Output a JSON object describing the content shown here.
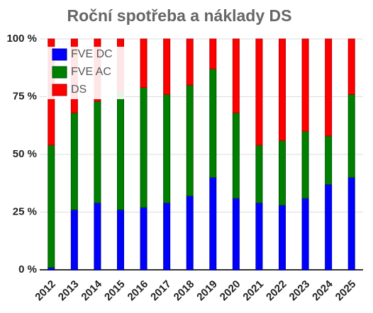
{
  "chart_data": {
    "type": "stacked_bar",
    "title": "Roční spotřeba a náklady DS",
    "categories": [
      "2012",
      "2013",
      "2014",
      "2015",
      "2016",
      "2017",
      "2018",
      "2019",
      "2020",
      "2021",
      "2022",
      "2023",
      "2024",
      "2025"
    ],
    "series": [
      {
        "name": "FVE DC",
        "color": "#0000ff",
        "values": [
          1,
          26,
          29,
          26,
          27,
          29,
          32,
          40,
          31,
          29,
          28,
          31,
          37,
          40
        ]
      },
      {
        "name": "FVE AC",
        "color": "#008000",
        "values": [
          53,
          42,
          44,
          51,
          52,
          47,
          48,
          47,
          37,
          25,
          28,
          29,
          21,
          36
        ]
      },
      {
        "name": "DS",
        "color": "#ff0000",
        "values": [
          46,
          32,
          27,
          23,
          21,
          24,
          20,
          13,
          32,
          46,
          44,
          40,
          42,
          24
        ]
      }
    ],
    "ylim": [
      0,
      100
    ],
    "yticks": [
      {
        "value": 0,
        "label": "0 %"
      },
      {
        "value": 25,
        "label": "25 %"
      },
      {
        "value": 50,
        "label": "50 %"
      },
      {
        "value": 75,
        "label": "75 %"
      },
      {
        "value": 100,
        "label": "100 %"
      }
    ],
    "grid": true,
    "legend": "top-left"
  }
}
